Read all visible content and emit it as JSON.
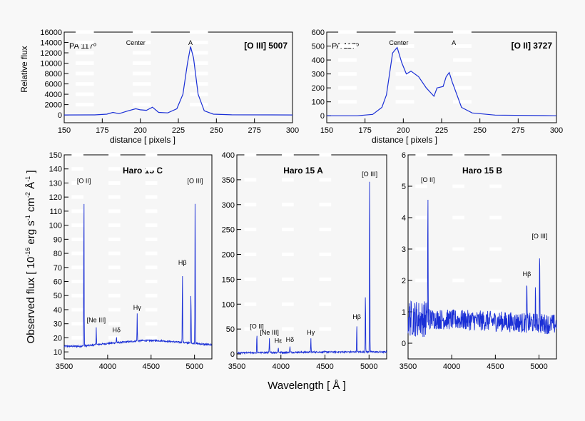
{
  "page": {
    "ylabel_top": "Relative flux",
    "ylabel_bottom": "Observed flux [ 10",
    "ylabel_bottom_sup1": "-16",
    "ylabel_bottom_mid": " erg s",
    "ylabel_bottom_sup2": "-1",
    "ylabel_bottom_mid2": " cm",
    "ylabel_bottom_sup3": "-2",
    "ylabel_bottom_mid3": " Å",
    "ylabel_bottom_sup4": "-1",
    "ylabel_bottom_end": " ]",
    "xlabel_bottom": "Wavelength [ Å ]",
    "line_color": "#1a2fd6",
    "plot_bg": "#f6f6f6"
  },
  "chart_data": [
    {
      "id": "oiii-profile",
      "type": "line",
      "title": "[O III] 5007",
      "annotation": "PA 117º",
      "markers": [
        {
          "label": "Center",
          "x": 197
        },
        {
          "label": "A",
          "x": 233
        }
      ],
      "xlabel": "distance [ pixels ]",
      "ylabel": "Relative flux",
      "xlim": [
        150,
        300
      ],
      "ylim": [
        -1500,
        16000
      ],
      "xticks": [
        150,
        175,
        200,
        225,
        250,
        275,
        300
      ],
      "yticks": [
        0,
        2000,
        4000,
        6000,
        8000,
        10000,
        12000,
        14000,
        16000
      ],
      "x": [
        150,
        170,
        178,
        182,
        186,
        192,
        197,
        200,
        204,
        208,
        212,
        218,
        224,
        228,
        231,
        233,
        235,
        238,
        242,
        248,
        260,
        300
      ],
      "y": [
        0,
        20,
        150,
        500,
        250,
        800,
        1200,
        1000,
        900,
        1500,
        500,
        400,
        1200,
        4000,
        10000,
        13200,
        11000,
        4000,
        800,
        150,
        30,
        0
      ]
    },
    {
      "id": "oii-profile",
      "type": "line",
      "title": "[O II] 3727",
      "annotation": "PA 117º",
      "markers": [
        {
          "label": "Center",
          "x": 197
        },
        {
          "label": "A",
          "x": 233
        }
      ],
      "xlabel": "distance [ pixels ]",
      "xlim": [
        150,
        300
      ],
      "ylim": [
        -50,
        600
      ],
      "xticks": [
        150,
        175,
        200,
        225,
        250,
        275,
        300
      ],
      "yticks": [
        0,
        100,
        200,
        300,
        400,
        500,
        600
      ],
      "x": [
        150,
        170,
        180,
        186,
        189,
        191,
        193,
        196,
        199,
        202,
        205,
        210,
        215,
        220,
        222,
        226,
        228,
        230,
        232,
        235,
        238,
        245,
        260,
        300
      ],
      "y": [
        0,
        0,
        10,
        60,
        150,
        300,
        450,
        490,
        380,
        300,
        320,
        280,
        200,
        140,
        200,
        210,
        280,
        310,
        240,
        150,
        60,
        20,
        5,
        0
      ]
    },
    {
      "id": "haro15c",
      "type": "line",
      "title": "Haro 15  C",
      "xlim": [
        3500,
        5200
      ],
      "ylim": [
        5,
        150
      ],
      "xticks": [
        3500,
        4000,
        4500,
        5000
      ],
      "yticks": [
        10,
        20,
        30,
        40,
        50,
        60,
        70,
        80,
        90,
        100,
        110,
        120,
        130,
        140,
        150
      ],
      "continuum": [
        [
          3500,
          14
        ],
        [
          3700,
          14
        ],
        [
          4000,
          16
        ],
        [
          4400,
          18
        ],
        [
          4600,
          18
        ],
        [
          4800,
          17
        ],
        [
          5000,
          16
        ],
        [
          5200,
          15
        ]
      ],
      "lines": [
        {
          "label": "[O II]",
          "x": 3727,
          "peak": 127
        },
        {
          "label": "[Ne III]",
          "x": 3869,
          "peak": 28
        },
        {
          "label": "Hδ",
          "x": 4102,
          "peak": 21
        },
        {
          "label": "Hγ",
          "x": 4340,
          "peak": 37
        },
        {
          "label": "Hβ",
          "x": 4861,
          "peak": 69
        },
        {
          "label": "",
          "x": 4959,
          "peak": 53
        },
        {
          "label": "[O III]",
          "x": 5007,
          "peak": 127
        }
      ]
    },
    {
      "id": "haro15a",
      "type": "line",
      "title": "Haro 15 A",
      "xlim": [
        3500,
        5200
      ],
      "ylim": [
        -10,
        400
      ],
      "xticks": [
        3500,
        4000,
        4500,
        5000
      ],
      "yticks": [
        0,
        50,
        100,
        150,
        200,
        250,
        300,
        350,
        400
      ],
      "continuum": [
        [
          3500,
          2
        ],
        [
          4000,
          3
        ],
        [
          4500,
          4
        ],
        [
          5000,
          4
        ],
        [
          5200,
          4
        ]
      ],
      "lines": [
        {
          "label": "[O II]",
          "x": 3727,
          "peak": 42
        },
        {
          "label": "[Ne III]",
          "x": 3869,
          "peak": 30
        },
        {
          "label": "Hε",
          "x": 3970,
          "peak": 14
        },
        {
          "label": "Hδ",
          "x": 4102,
          "peak": 16
        },
        {
          "label": "Hγ",
          "x": 4340,
          "peak": 30
        },
        {
          "label": "Hβ",
          "x": 4861,
          "peak": 62
        },
        {
          "label": "",
          "x": 4959,
          "peak": 127
        },
        {
          "label": "[O III]",
          "x": 5007,
          "peak": 387
        }
      ]
    },
    {
      "id": "haro15b",
      "type": "line",
      "title": "Haro 15 B",
      "xlim": [
        3500,
        5200
      ],
      "ylim": [
        -0.5,
        6
      ],
      "xticks": [
        3500,
        4000,
        4500,
        5000
      ],
      "yticks": [
        0,
        1,
        2,
        3,
        4,
        5,
        6
      ],
      "continuum": [
        [
          3500,
          0.8
        ],
        [
          4000,
          0.75
        ],
        [
          4500,
          0.7
        ],
        [
          5200,
          0.6
        ]
      ],
      "lines": [
        {
          "label": "[O II]",
          "x": 3727,
          "peak": 5.0
        },
        {
          "label": "Hβ",
          "x": 4861,
          "peak": 2.0
        },
        {
          "label": "",
          "x": 4959,
          "peak": 1.6
        },
        {
          "label": "[O III]",
          "x": 5007,
          "peak": 3.2
        }
      ]
    }
  ]
}
